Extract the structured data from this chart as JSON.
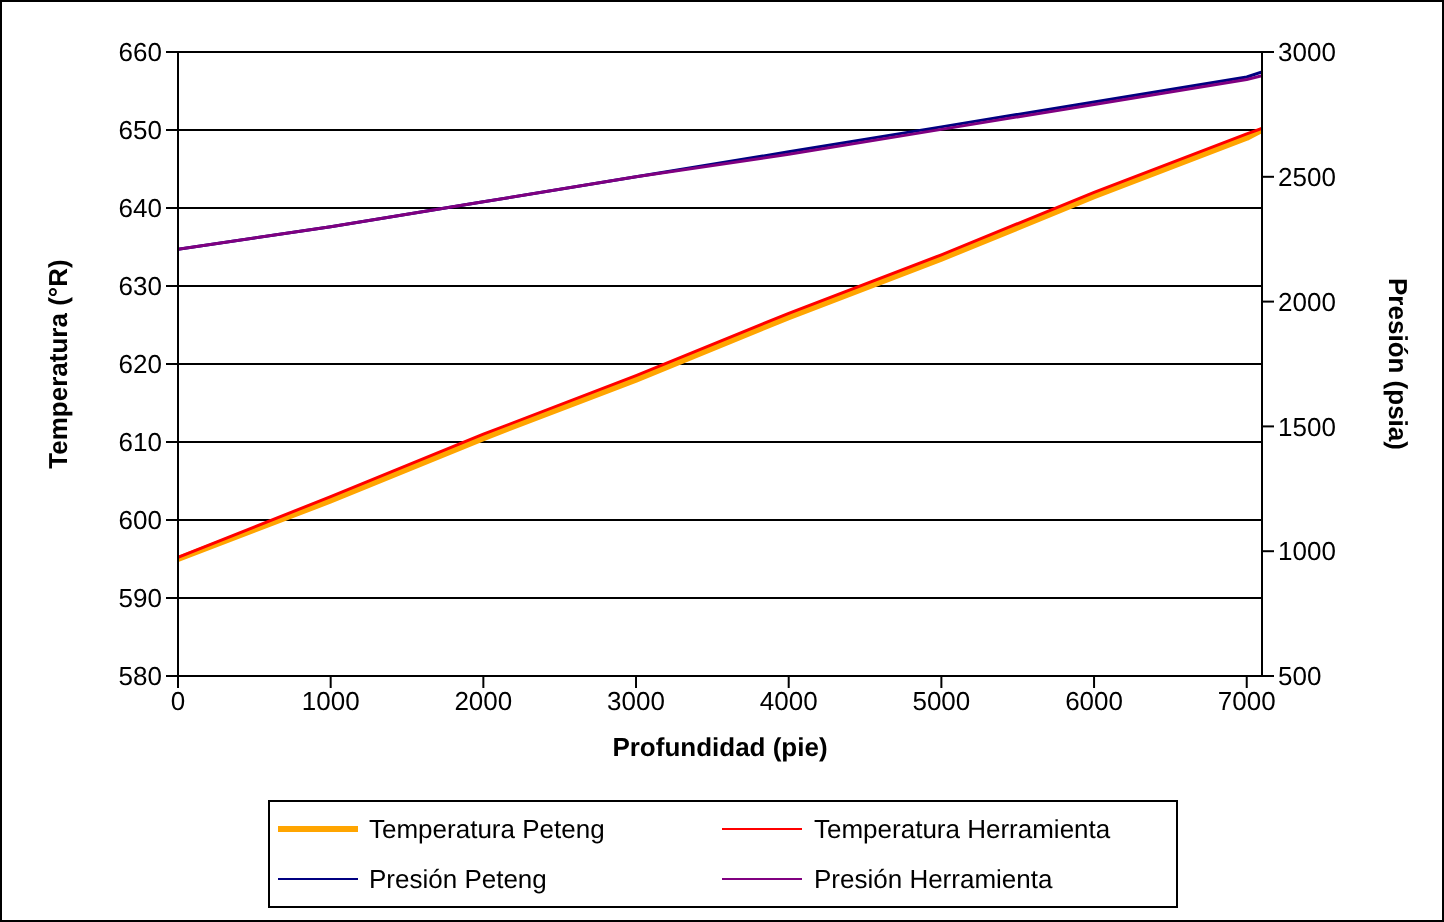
{
  "chart_data": {
    "type": "line",
    "xlabel": "Profundidad (pie)",
    "ylabel": "Temperatura (°R)",
    "y2label": "Presión (psia)",
    "x": [
      0,
      1000,
      2000,
      3000,
      4000,
      5000,
      6000,
      7000,
      7100
    ],
    "series": [
      {
        "name": "Temperatura Peteng",
        "color": "#ffa500",
        "values": [
          595,
          602.5,
          610.5,
          618,
          626,
          633.5,
          641.5,
          649,
          650
        ]
      },
      {
        "name": "Temperatura Herramienta",
        "color": "#ff0000",
        "values": [
          595.2,
          603,
          611,
          618.5,
          626.5,
          634,
          642,
          649.5,
          650.2
        ]
      },
      {
        "name": "Presión Peteng",
        "color": "#000080",
        "axis": "y2",
        "values": [
          2210,
          2300,
          2400,
          2500,
          2600,
          2700,
          2800,
          2900,
          2920
        ]
      },
      {
        "name": "Presión Herramienta",
        "color": "#800080",
        "axis": "y2",
        "values": [
          2210,
          2300,
          2400,
          2500,
          2590,
          2690,
          2790,
          2890,
          2905
        ]
      }
    ],
    "xlim": [
      0,
      7100
    ],
    "xticks": [
      0,
      1000,
      2000,
      3000,
      4000,
      5000,
      6000,
      7000
    ],
    "ylim": [
      580,
      660
    ],
    "yticks": [
      580,
      590,
      600,
      610,
      620,
      630,
      640,
      650,
      660
    ],
    "y2lim": [
      500,
      3000
    ],
    "y2ticks": [
      500,
      1000,
      1500,
      2000,
      2500,
      3000
    ],
    "grid": "y",
    "legend": "bottom",
    "marker": "none",
    "line_style": "solid"
  }
}
